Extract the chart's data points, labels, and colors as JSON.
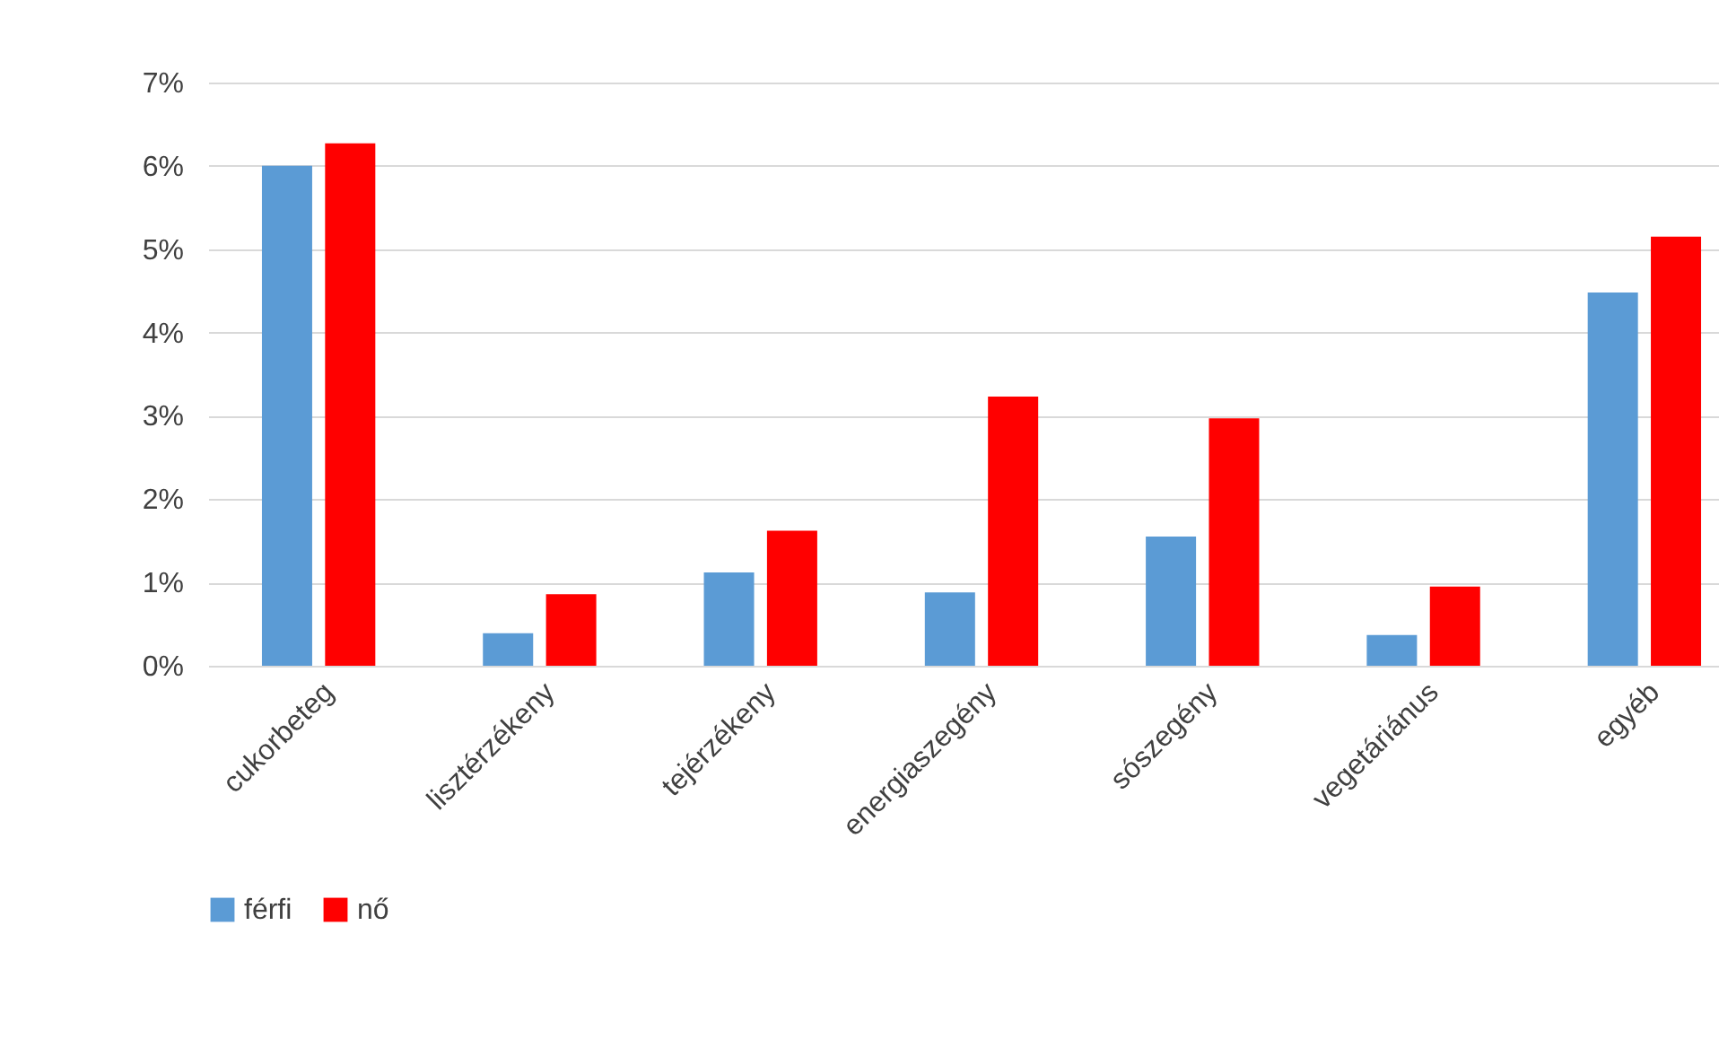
{
  "chart_data": {
    "type": "bar",
    "categories": [
      "cukorbeteg",
      "lisztérzékeny",
      "tejérzékeny",
      "energiaszegény",
      "sószegény",
      "vegetáriánus",
      "egyéb"
    ],
    "series": [
      {
        "name": "férfi",
        "color": "#5b9bd5",
        "values": [
          6.0,
          0.39,
          1.12,
          0.88,
          1.55,
          0.37,
          4.48
        ]
      },
      {
        "name": "nő",
        "color": "#ff0000",
        "values": [
          6.27,
          0.86,
          1.62,
          3.23,
          2.97,
          0.95,
          5.15
        ]
      }
    ],
    "ylim": [
      0,
      7
    ],
    "yticks": [
      {
        "value": 0,
        "label": "0%"
      },
      {
        "value": 1,
        "label": "1%"
      },
      {
        "value": 2,
        "label": "2%"
      },
      {
        "value": 3,
        "label": "3%"
      },
      {
        "value": 4,
        "label": "4%"
      },
      {
        "value": 5,
        "label": "5%"
      },
      {
        "value": 6,
        "label": "6%"
      },
      {
        "value": 7,
        "label": "7%"
      }
    ],
    "grid": "y",
    "legend": "bottom"
  }
}
